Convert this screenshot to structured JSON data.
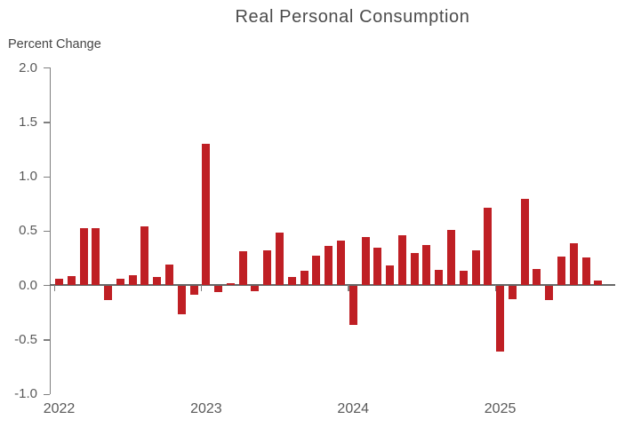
{
  "chart_data": {
    "type": "bar",
    "title": "Real Personal Consumption",
    "ylabel": "Percent Change",
    "xlabel": "",
    "series_name": "Real Personal Consumption, monthly percent change",
    "bar_color": "#BF1F24",
    "axis_color": "#7f7f7f",
    "zero_line_color": "#666666",
    "text_color": "#595959",
    "grid": false,
    "legend": false,
    "ylim": [
      -1.0,
      2.0
    ],
    "y_ticks": [
      "2.0",
      "1.5",
      "1.0",
      "0.5",
      "0.0",
      "-0.5",
      "-1.0"
    ],
    "y_tick_values": [
      2.0,
      1.5,
      1.0,
      0.5,
      0.0,
      -0.5,
      -1.0
    ],
    "x_tick_labels": [
      "2022",
      "2023",
      "2024",
      "2025"
    ],
    "categories": [
      "Jan 2022",
      "Feb 2022",
      "Mar 2022",
      "Apr 2022",
      "May 2022",
      "Jun 2022",
      "Jul 2022",
      "Aug 2022",
      "Sep 2022",
      "Oct 2022",
      "Nov 2022",
      "Dec 2022",
      "Jan 2023",
      "Feb 2023",
      "Mar 2023",
      "Apr 2023",
      "May 2023",
      "Jun 2023",
      "Jul 2023",
      "Aug 2023",
      "Sep 2023",
      "Oct 2023",
      "Nov 2023",
      "Dec 2023",
      "Jan 2024",
      "Feb 2024",
      "Mar 2024",
      "Apr 2024",
      "May 2024",
      "Jun 2024",
      "Jul 2024",
      "Aug 2024",
      "Sep 2024",
      "Oct 2024",
      "Nov 2024",
      "Dec 2024",
      "Jan 2025",
      "Feb 2025",
      "Mar 2025",
      "Apr 2025",
      "May 2025",
      "Jun 2025",
      "Jul 2025",
      "Aug 2025",
      "Sep 2025"
    ],
    "values": [
      0.06,
      0.08,
      0.52,
      0.52,
      -0.13,
      0.06,
      0.09,
      0.54,
      0.07,
      0.19,
      -0.26,
      -0.08,
      1.3,
      -0.06,
      0.02,
      0.31,
      -0.05,
      0.32,
      0.48,
      0.07,
      0.13,
      0.27,
      0.36,
      0.41,
      -0.36,
      0.44,
      0.34,
      0.18,
      0.46,
      0.29,
      0.37,
      0.14,
      0.51,
      0.13,
      0.32,
      0.71,
      -0.6,
      -0.12,
      0.79,
      0.15,
      -0.13,
      0.26,
      0.38,
      0.25,
      0.04
    ]
  }
}
